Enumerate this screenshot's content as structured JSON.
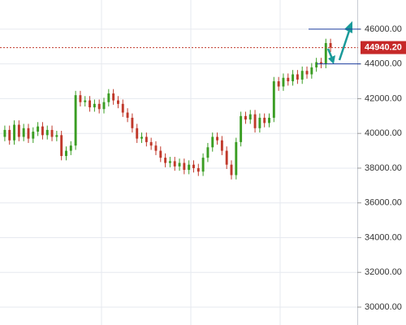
{
  "chart_data": {
    "type": "candlestick",
    "open": [
      39800,
      40200,
      39600,
      40500,
      39800,
      40300,
      39700,
      40100,
      40400,
      39900,
      40200,
      39800,
      39900,
      38700,
      39000,
      39300,
      42200,
      41800,
      41900,
      41500,
      41700,
      41400,
      41800,
      42300,
      41900,
      41700,
      41200,
      40900,
      40300,
      39700,
      39800,
      39500,
      39300,
      39000,
      38600,
      38300,
      38400,
      38100,
      38300,
      37900,
      38200,
      38000,
      37800,
      38600,
      39200,
      39800,
      39600,
      39000,
      38200,
      37600,
      39500,
      41000,
      40800,
      41100,
      40300,
      40900,
      40600,
      40900,
      43000,
      42700,
      43200,
      43000,
      43400,
      43100,
      43600,
      43400,
      43800,
      44100,
      44000,
      45200
    ],
    "high": [
      40450,
      40450,
      40750,
      40750,
      40550,
      40550,
      40350,
      40650,
      40650,
      40450,
      40450,
      40150,
      40150,
      39250,
      39550,
      42450,
      42450,
      42150,
      42150,
      41950,
      41950,
      42050,
      42550,
      42550,
      42150,
      41950,
      41450,
      41150,
      40550,
      40050,
      40050,
      39750,
      39550,
      39250,
      38850,
      38650,
      38650,
      38550,
      38550,
      38450,
      38450,
      38250,
      38850,
      39450,
      40050,
      40050,
      39850,
      39250,
      38450,
      39750,
      41250,
      41250,
      41350,
      41350,
      41150,
      41150,
      41150,
      43250,
      43250,
      43450,
      43450,
      43650,
      43650,
      43850,
      43850,
      44050,
      44350,
      44350,
      45450,
      45450
    ],
    "low": [
      39550,
      39350,
      39350,
      39550,
      39550,
      39450,
      39450,
      39850,
      39650,
      39650,
      39550,
      39550,
      38450,
      38450,
      38750,
      39050,
      41550,
      41550,
      41250,
      41250,
      41150,
      41150,
      41550,
      41650,
      41450,
      40950,
      40650,
      40050,
      39450,
      39450,
      39250,
      39050,
      38750,
      38350,
      38050,
      38050,
      37850,
      37850,
      37650,
      37650,
      37750,
      37550,
      37550,
      38350,
      38950,
      39350,
      38750,
      37950,
      37350,
      37350,
      39250,
      40550,
      40550,
      40050,
      40050,
      40350,
      40350,
      40650,
      42450,
      42450,
      42750,
      42750,
      42850,
      42850,
      43150,
      43150,
      43550,
      43750,
      43750,
      44690
    ],
    "close": [
      40200,
      39600,
      40500,
      39800,
      40300,
      39700,
      40100,
      40400,
      39900,
      40200,
      39800,
      39900,
      38700,
      39000,
      39300,
      42200,
      41800,
      41900,
      41500,
      41700,
      41400,
      41800,
      42300,
      41900,
      41700,
      41200,
      40900,
      40300,
      39700,
      39800,
      39500,
      39300,
      39000,
      38600,
      38300,
      38400,
      38100,
      38300,
      37900,
      38200,
      38000,
      37800,
      38600,
      39200,
      39800,
      39600,
      39000,
      38200,
      37600,
      39500,
      41000,
      40800,
      41100,
      40300,
      40900,
      40600,
      40900,
      43000,
      42700,
      43200,
      43000,
      43400,
      43100,
      43600,
      43400,
      43800,
      44100,
      44000,
      45200,
      44940.2
    ],
    "up_color": "#3a9d23",
    "down_color": "#c0392b",
    "ylim": [
      28970,
      47680
    ],
    "yticks": [
      {
        "value": 30000,
        "label": "30000.00"
      },
      {
        "value": 32000,
        "label": "32000.00"
      },
      {
        "value": 34000,
        "label": "34000.00"
      },
      {
        "value": 36000,
        "label": "36000.00"
      },
      {
        "value": 38000,
        "label": "38000.00"
      },
      {
        "value": 40000,
        "label": "40000.00"
      },
      {
        "value": 42000,
        "label": "42000.00"
      },
      {
        "value": 44000,
        "label": "44000.00"
      },
      {
        "value": 46000,
        "label": "46000.00"
      }
    ],
    "grid": true,
    "current_price": {
      "value": 44940.2,
      "label": "44940.20"
    },
    "hlines": [
      46000,
      44000
    ],
    "hline_color": "#1f3f9f"
  }
}
